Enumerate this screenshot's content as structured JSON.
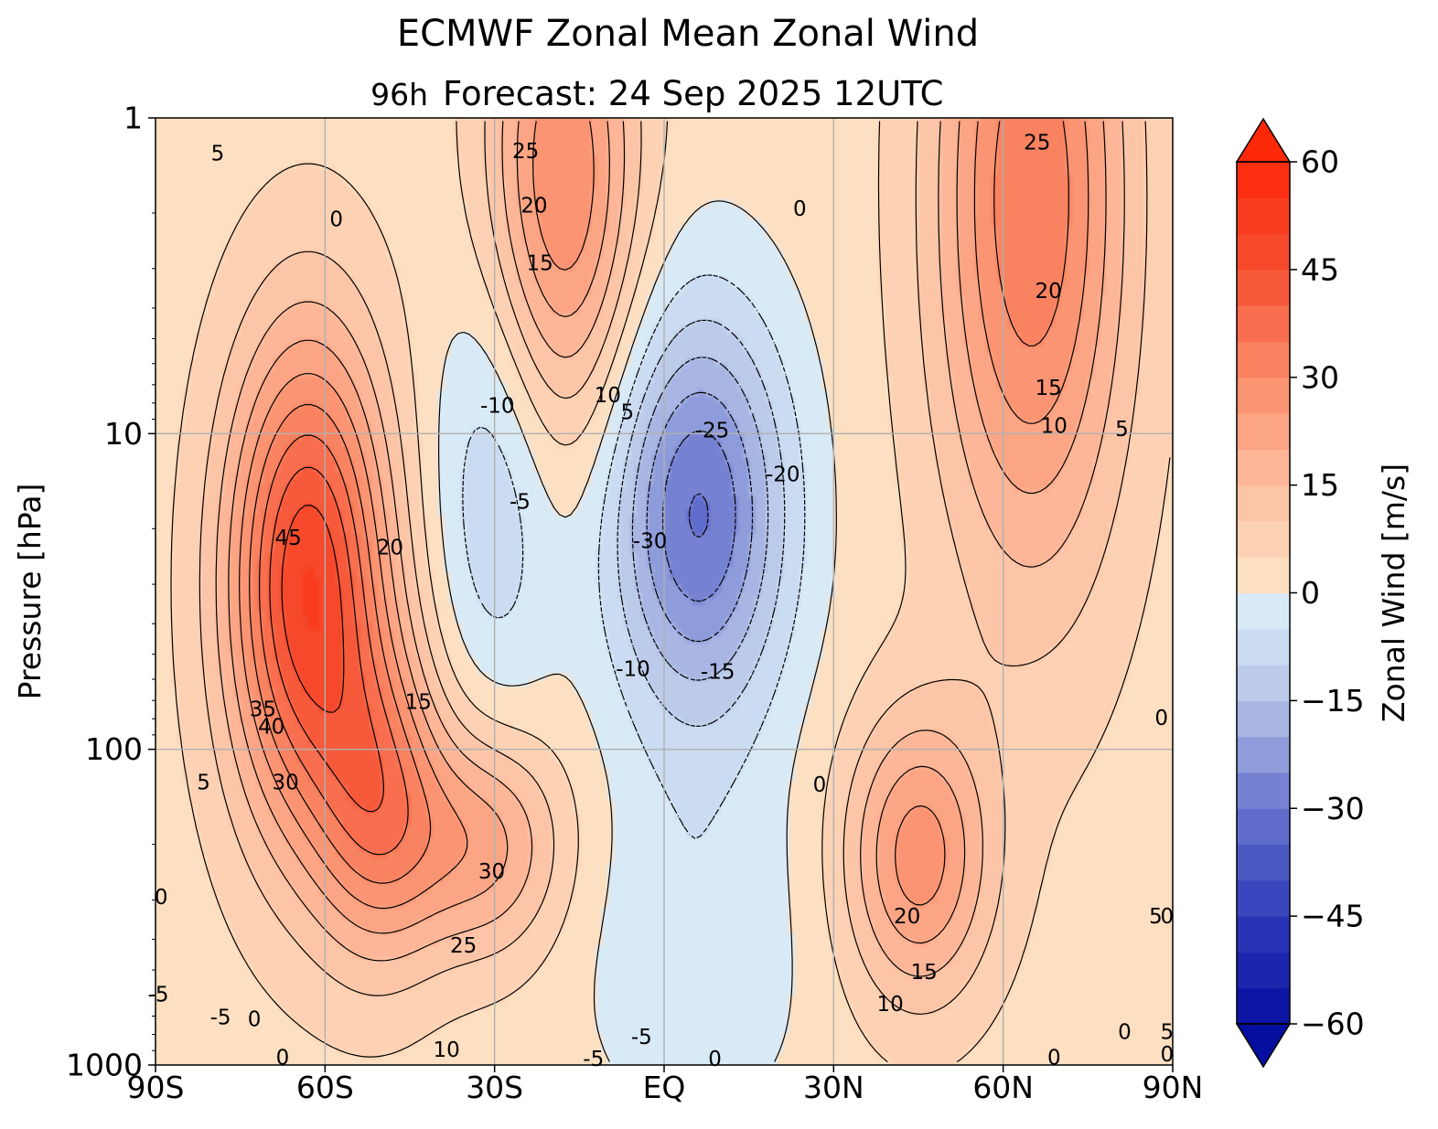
{
  "chart_data": {
    "type": "contour",
    "title": "ECMWF Zonal Mean Zonal Wind",
    "subtitle_prefix": "96h",
    "subtitle": "Forecast:  24 Sep 2025  12UTC",
    "ylabel": "Pressure [hPa]",
    "y_scale": "log",
    "ylim": [
      1000,
      1
    ],
    "y_ticks": [
      {
        "value": 1,
        "label": "1"
      },
      {
        "value": 10,
        "label": "10"
      },
      {
        "value": 100,
        "label": "100"
      },
      {
        "value": 1000,
        "label": "1000"
      }
    ],
    "xlim": [
      -90,
      90
    ],
    "x_ticks": [
      {
        "value": -90,
        "label": "90S"
      },
      {
        "value": -60,
        "label": "60S"
      },
      {
        "value": -30,
        "label": "30S"
      },
      {
        "value": 0,
        "label": "EQ"
      },
      {
        "value": 30,
        "label": "30N"
      },
      {
        "value": 60,
        "label": "60N"
      },
      {
        "value": 90,
        "label": "90N"
      }
    ],
    "grid": true,
    "colorbar": {
      "label": "Zonal Wind [m/s]",
      "range": [
        -60,
        60
      ],
      "step": 5,
      "extend": "both",
      "ticks": [
        {
          "value": 60,
          "label": "60"
        },
        {
          "value": 45,
          "label": "45"
        },
        {
          "value": 30,
          "label": "30"
        },
        {
          "value": 15,
          "label": "15"
        },
        {
          "value": 0,
          "label": "0"
        },
        {
          "value": -15,
          "label": "−15"
        },
        {
          "value": -30,
          "label": "−30"
        },
        {
          "value": -45,
          "label": "−45"
        },
        {
          "value": -60,
          "label": "−60"
        }
      ]
    },
    "features": [
      {
        "name": "sh-polar-night-jet",
        "lat": -63,
        "p": 30,
        "peak": 47,
        "dlat": 10,
        "dlogp": 0.55
      },
      {
        "name": "sh-jet-extension",
        "lat": -50,
        "p": 150,
        "peak": 25,
        "dlat": 8,
        "dlogp": 0.35
      },
      {
        "name": "sh-subtropical-jet",
        "lat": -32,
        "p": 200,
        "peak": 20,
        "dlat": 10,
        "dlogp": 0.25
      },
      {
        "name": "sh-upper-strat-westerly",
        "lat": -18,
        "p": 1.6,
        "peak": 28,
        "dlat": 9,
        "dlogp": 0.55
      },
      {
        "name": "nh-upper-strat-westerly",
        "lat": 65,
        "p": 1.8,
        "peak": 32,
        "dlat": 12,
        "dlogp": 0.85
      },
      {
        "name": "nh-subtropical-jet",
        "lat": 45,
        "p": 220,
        "peak": 25,
        "dlat": 9,
        "dlogp": 0.32
      },
      {
        "name": "tropical-easterly",
        "lat": 6,
        "p": 18,
        "peak": -33,
        "dlat": 11,
        "dlogp": 0.45
      },
      {
        "name": "sh-tropical-easterly",
        "lat": -30,
        "p": 15,
        "peak": -12,
        "dlat": 8,
        "dlogp": 0.5
      },
      {
        "name": "tropical-lower-easterly",
        "lat": 5,
        "p": 400,
        "peak": -7,
        "dlat": 14,
        "dlogp": 0.4
      }
    ],
    "contour_labels": [
      {
        "text": "5",
        "lat": -79,
        "p": 1.3
      },
      {
        "text": "0",
        "lat": -58,
        "p": 2.1
      },
      {
        "text": "25",
        "lat": -24.5,
        "p": 1.28
      },
      {
        "text": "20",
        "lat": -23,
        "p": 1.9
      },
      {
        "text": "15",
        "lat": -22,
        "p": 2.9
      },
      {
        "text": "0",
        "lat": 24,
        "p": 1.95
      },
      {
        "text": "25",
        "lat": 66,
        "p": 1.2
      },
      {
        "text": "20",
        "lat": 68,
        "p": 3.55
      },
      {
        "text": "15",
        "lat": 68,
        "p": 7.2
      },
      {
        "text": "10",
        "lat": 69,
        "p": 9.5
      },
      {
        "text": "5",
        "lat": 81,
        "p": 9.7
      },
      {
        "text": "-10",
        "lat": -29.5,
        "p": 8.2
      },
      {
        "text": "10",
        "lat": -10,
        "p": 7.6
      },
      {
        "text": "5",
        "lat": -6.5,
        "p": 8.6
      },
      {
        "text": "-25",
        "lat": 8.5,
        "p": 9.8
      },
      {
        "text": "-20",
        "lat": 21,
        "p": 13.5
      },
      {
        "text": "-5",
        "lat": -25.5,
        "p": 16.5
      },
      {
        "text": "-30",
        "lat": -2.5,
        "p": 22
      },
      {
        "text": "45",
        "lat": -66.5,
        "p": 21.5
      },
      {
        "text": "20",
        "lat": -48.5,
        "p": 23
      },
      {
        "text": "-10",
        "lat": -5.5,
        "p": 56
      },
      {
        "text": "-15",
        "lat": 9.5,
        "p": 57
      },
      {
        "text": "15",
        "lat": -43.5,
        "p": 71
      },
      {
        "text": "35",
        "lat": -71,
        "p": 75
      },
      {
        "text": "40",
        "lat": -69.5,
        "p": 85
      },
      {
        "text": "5",
        "lat": -81.5,
        "p": 128
      },
      {
        "text": "30",
        "lat": -67,
        "p": 128
      },
      {
        "text": "0",
        "lat": 27.5,
        "p": 130
      },
      {
        "text": "0",
        "lat": -89,
        "p": 295
      },
      {
        "text": "30",
        "lat": -30.5,
        "p": 245
      },
      {
        "text": "20",
        "lat": 43,
        "p": 340
      },
      {
        "text": "25",
        "lat": -35.5,
        "p": 420
      },
      {
        "text": "15",
        "lat": 46,
        "p": 510
      },
      {
        "text": "-5",
        "lat": -89.5,
        "p": 600
      },
      {
        "text": "5",
        "lat": 87,
        "p": 340
      },
      {
        "text": "0",
        "lat": 89,
        "p": 340
      },
      {
        "text": "5",
        "lat": 89,
        "p": 790
      },
      {
        "text": "10",
        "lat": 40,
        "p": 645
      },
      {
        "text": "0",
        "lat": 88,
        "p": 80
      },
      {
        "text": "-5",
        "lat": -78.5,
        "p": 710
      },
      {
        "text": "0",
        "lat": -72.5,
        "p": 720
      },
      {
        "text": "0",
        "lat": 81.5,
        "p": 790
      },
      {
        "text": "-5",
        "lat": -4,
        "p": 820
      },
      {
        "text": "-5",
        "lat": -12.5,
        "p": 960
      },
      {
        "text": "10",
        "lat": -38.5,
        "p": 900
      },
      {
        "text": "0",
        "lat": 9,
        "p": 960
      },
      {
        "text": "0",
        "lat": -67.5,
        "p": 950
      },
      {
        "text": "0",
        "lat": 69,
        "p": 950
      },
      {
        "text": "0",
        "lat": 89,
        "p": 930
      }
    ]
  }
}
